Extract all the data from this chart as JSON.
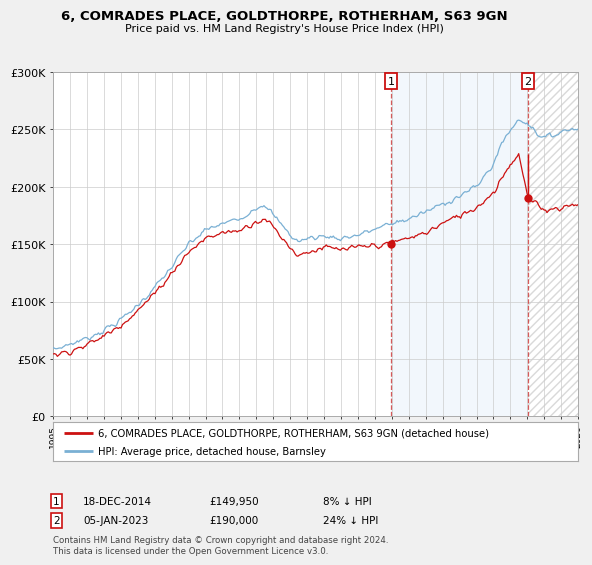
{
  "title": "6, COMRADES PLACE, GOLDTHORPE, ROTHERHAM, S63 9GN",
  "subtitle": "Price paid vs. HM Land Registry's House Price Index (HPI)",
  "ylim": [
    0,
    300000
  ],
  "yticks": [
    0,
    50000,
    100000,
    150000,
    200000,
    250000,
    300000
  ],
  "ytick_labels": [
    "£0",
    "£50K",
    "£100K",
    "£150K",
    "£200K",
    "£250K",
    "£300K"
  ],
  "xstart_year": 1995,
  "xend_year": 2026,
  "bg_color": "#ffffff",
  "hpi_color": "#7ab0d4",
  "price_color": "#cc1111",
  "sale1_price": 149950,
  "sale1_pct": "8%",
  "sale1_year": 2014.96,
  "sale2_price": 190000,
  "sale2_pct": "24%",
  "sale2_year": 2023.03,
  "sale1_date": "18-DEC-2014",
  "sale2_date": "05-JAN-2023",
  "legend_label1": "6, COMRADES PLACE, GOLDTHORPE, ROTHERHAM, S63 9GN (detached house)",
  "legend_label2": "HPI: Average price, detached house, Barnsley",
  "footnote": "Contains HM Land Registry data © Crown copyright and database right 2024.\nThis data is licensed under the Open Government Licence v3.0."
}
